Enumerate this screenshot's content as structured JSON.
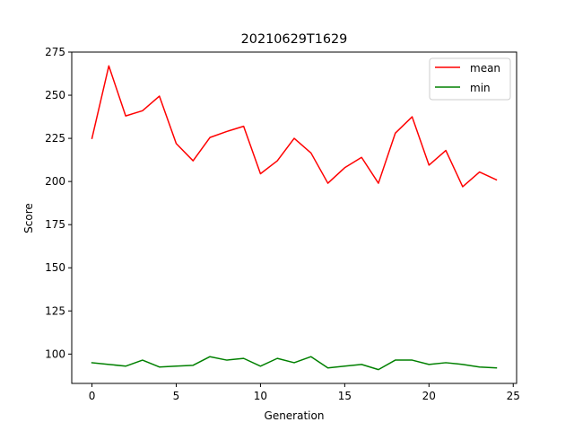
{
  "chart_data": {
    "type": "line",
    "title": "20210629T1629",
    "xlabel": "Generation",
    "ylabel": "Score",
    "xlim": [
      -1.2,
      25.2
    ],
    "ylim": [
      83,
      275
    ],
    "xticks": [
      0,
      5,
      10,
      15,
      20,
      25
    ],
    "yticks": [
      100,
      125,
      150,
      175,
      200,
      225,
      250,
      275
    ],
    "grid": false,
    "legend_position": "top-right",
    "x": [
      0,
      1,
      2,
      3,
      4,
      5,
      6,
      7,
      8,
      9,
      10,
      11,
      12,
      13,
      14,
      15,
      16,
      17,
      18,
      19,
      20,
      21,
      22,
      23,
      24
    ],
    "series": [
      {
        "name": "mean",
        "color": "#ff0000",
        "values": [
          225,
          267,
          238,
          241,
          249.5,
          222,
          212,
          225.5,
          229,
          232,
          204.5,
          212,
          225,
          216.5,
          199,
          208,
          214,
          199,
          228,
          237.5,
          209.5,
          218,
          197,
          205.5,
          201
        ]
      },
      {
        "name": "min",
        "color": "#008000",
        "values": [
          95,
          94,
          93,
          96.5,
          92.5,
          93,
          93.5,
          98.5,
          96.5,
          97.5,
          93,
          97.5,
          95,
          98.5,
          92,
          93,
          94,
          91,
          96.5,
          96.5,
          94,
          95,
          94,
          92.5,
          92
        ]
      }
    ]
  }
}
